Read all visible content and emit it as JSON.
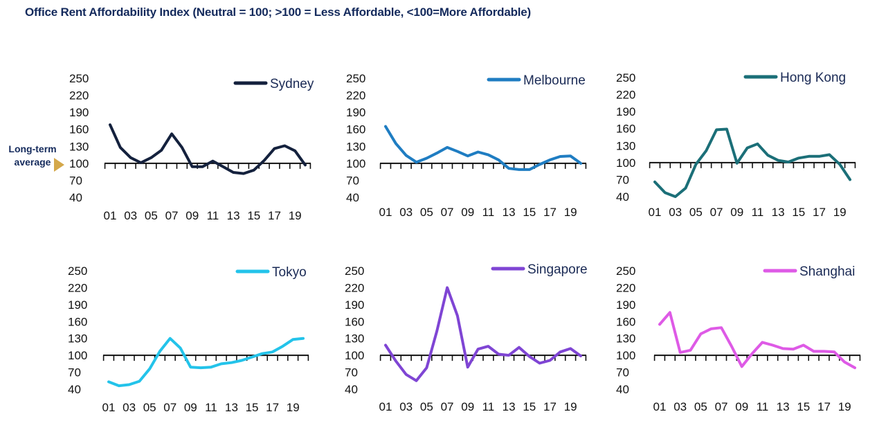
{
  "title": "Office Rent Affordability Index (Neutral = 100; >100 = Less Affordable, <100=More Affordable)",
  "reference_note": {
    "line1": "Long-term",
    "line2": "average",
    "arrow_color": "#d4a84a"
  },
  "chart_data": [
    {
      "type": "line",
      "series": [
        {
          "name": "Sydney",
          "color": "#14213d",
          "values": [
            168,
            128,
            110,
            101,
            110,
            123,
            152,
            128,
            94,
            94,
            104,
            94,
            84,
            82,
            88,
            105,
            126,
            131,
            122,
            97
          ]
        }
      ],
      "x": [
        "01",
        "02",
        "03",
        "04",
        "05",
        "06",
        "07",
        "08",
        "09",
        "10",
        "11",
        "12",
        "13",
        "14",
        "15",
        "16",
        "17",
        "18",
        "19",
        "20"
      ],
      "x_tick_labels": [
        "01",
        "03",
        "05",
        "07",
        "09",
        "11",
        "13",
        "15",
        "17",
        "19"
      ],
      "y_ticks": [
        250,
        220,
        190,
        160,
        130,
        100,
        70,
        40
      ],
      "ylim": [
        40,
        250
      ],
      "baseline": 100
    },
    {
      "type": "line",
      "series": [
        {
          "name": "Melbourne",
          "color": "#1f7dc2",
          "values": [
            165,
            135,
            114,
            102,
            109,
            118,
            128,
            121,
            113,
            120,
            115,
            106,
            91,
            89,
            89,
            98,
            106,
            112,
            113,
            100
          ]
        }
      ],
      "x": [
        "01",
        "02",
        "03",
        "04",
        "05",
        "06",
        "07",
        "08",
        "09",
        "10",
        "11",
        "12",
        "13",
        "14",
        "15",
        "16",
        "17",
        "18",
        "19",
        "20"
      ],
      "x_tick_labels": [
        "01",
        "03",
        "05",
        "07",
        "09",
        "11",
        "13",
        "15",
        "17",
        "19"
      ],
      "y_ticks": [
        250,
        220,
        190,
        160,
        130,
        100,
        70,
        40
      ],
      "ylim": [
        40,
        250
      ],
      "baseline": 100
    },
    {
      "type": "line",
      "series": [
        {
          "name": "Hong Kong",
          "color": "#1b6f78",
          "values": [
            66,
            47,
            40,
            55,
            97,
            121,
            158,
            159,
            99,
            126,
            133,
            113,
            104,
            101,
            108,
            111,
            111,
            114,
            97,
            70
          ]
        }
      ],
      "x": [
        "01",
        "02",
        "03",
        "04",
        "05",
        "06",
        "07",
        "08",
        "09",
        "10",
        "11",
        "12",
        "13",
        "14",
        "15",
        "16",
        "17",
        "18",
        "19",
        "20"
      ],
      "x_tick_labels": [
        "01",
        "03",
        "05",
        "07",
        "09",
        "11",
        "13",
        "15",
        "17",
        "19"
      ],
      "y_ticks": [
        250,
        220,
        190,
        160,
        130,
        100,
        70,
        40
      ],
      "ylim": [
        40,
        250
      ],
      "baseline": 100
    },
    {
      "type": "line",
      "series": [
        {
          "name": "Tokyo",
          "color": "#23c3ea",
          "values": [
            53,
            46,
            48,
            54,
            76,
            107,
            130,
            113,
            79,
            78,
            79,
            85,
            87,
            91,
            97,
            103,
            106,
            116,
            128,
            130
          ]
        }
      ],
      "x": [
        "01",
        "02",
        "03",
        "04",
        "05",
        "06",
        "07",
        "08",
        "09",
        "10",
        "11",
        "12",
        "13",
        "14",
        "15",
        "16",
        "17",
        "18",
        "19",
        "20"
      ],
      "x_tick_labels": [
        "01",
        "03",
        "05",
        "07",
        "09",
        "11",
        "13",
        "15",
        "17",
        "19"
      ],
      "y_ticks": [
        250,
        220,
        190,
        160,
        130,
        100,
        70,
        40
      ],
      "ylim": [
        40,
        250
      ],
      "baseline": 100
    },
    {
      "type": "line",
      "series": [
        {
          "name": "Singapore",
          "color": "#7f45d4",
          "values": [
            118,
            90,
            66,
            55,
            78,
            143,
            220,
            170,
            79,
            111,
            116,
            102,
            100,
            114,
            98,
            86,
            91,
            106,
            112,
            99
          ]
        }
      ],
      "x": [
        "01",
        "02",
        "03",
        "04",
        "05",
        "06",
        "07",
        "08",
        "09",
        "10",
        "11",
        "12",
        "13",
        "14",
        "15",
        "16",
        "17",
        "18",
        "19",
        "20"
      ],
      "x_tick_labels": [
        "01",
        "03",
        "05",
        "07",
        "09",
        "11",
        "13",
        "15",
        "17",
        "19"
      ],
      "y_ticks": [
        250,
        220,
        190,
        160,
        130,
        100,
        70,
        40
      ],
      "ylim": [
        40,
        250
      ],
      "baseline": 100
    },
    {
      "type": "line",
      "series": [
        {
          "name": "Shanghai",
          "color": "#de5ae6",
          "values": [
            155,
            176,
            105,
            109,
            138,
            147,
            149,
            116,
            80,
            103,
            123,
            118,
            112,
            111,
            118,
            107,
            107,
            106,
            88,
            78
          ]
        }
      ],
      "x": [
        "01",
        "02",
        "03",
        "04",
        "05",
        "06",
        "07",
        "08",
        "09",
        "10",
        "11",
        "12",
        "13",
        "14",
        "15",
        "16",
        "17",
        "18",
        "19",
        "20"
      ],
      "x_tick_labels": [
        "01",
        "03",
        "05",
        "07",
        "09",
        "11",
        "13",
        "15",
        "17",
        "19"
      ],
      "y_ticks": [
        250,
        220,
        190,
        160,
        130,
        100,
        70,
        40
      ],
      "ylim": [
        40,
        250
      ],
      "baseline": 100
    }
  ]
}
